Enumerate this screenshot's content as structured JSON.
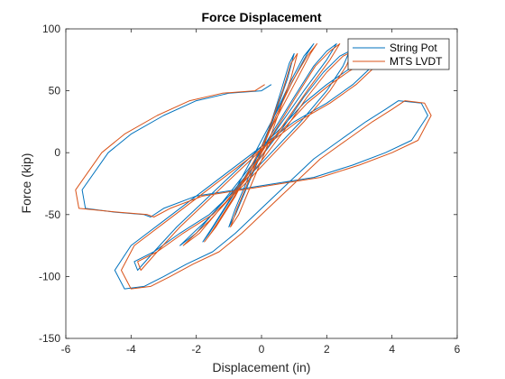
{
  "chart_data": {
    "type": "line",
    "title": "Force Displacement",
    "xlabel": "Displacement (in)",
    "ylabel": "Force (kip)",
    "xlim": [
      -6,
      6
    ],
    "ylim": [
      -150,
      100
    ],
    "xticks": [
      -6,
      -4,
      -2,
      0,
      2,
      4,
      6
    ],
    "yticks": [
      -150,
      -100,
      -50,
      0,
      50,
      100
    ],
    "grid": false,
    "legend_position": "top-right",
    "series": [
      {
        "name": "String Pot",
        "color": "#0072BD",
        "x": [
          0,
          0.3,
          0.6,
          0.85,
          1.0,
          0.8,
          0.4,
          0,
          -0.4,
          -0.8,
          -1.0,
          -0.8,
          -0.4,
          0,
          0.4,
          0.9,
          1.3,
          1.6,
          1.4,
          0.9,
          0.3,
          -0.3,
          -0.9,
          -1.5,
          -1.8,
          -1.6,
          -1.0,
          -0.4,
          0.3,
          1.0,
          1.6,
          2.0,
          2.3,
          2.0,
          1.3,
          0.5,
          -0.3,
          -1.2,
          -2.0,
          -2.5,
          -2.3,
          -1.7,
          -1.0,
          -0.2,
          0.6,
          1.3,
          1.9,
          2.4,
          2.7,
          2.5,
          2.0,
          1.2,
          0.3,
          -0.6,
          -1.6,
          -2.5,
          -3.3,
          -3.9,
          -3.8,
          -3.3,
          -2.6,
          -1.8,
          -1.0,
          -0.2,
          0.6,
          1.3,
          2.0,
          2.6,
          3.2,
          3.6,
          3.4,
          2.8,
          2.0,
          1.0,
          0,
          -1.0,
          -2.0,
          -3.0,
          -4.0,
          -4.5,
          -4.2,
          -3.6,
          -3.0,
          -2.3,
          -1.5,
          -0.8,
          0,
          0.8,
          1.6,
          2.4,
          3.2,
          3.8,
          4.2,
          4.9,
          5.1,
          4.6,
          3.8,
          2.8,
          1.6,
          0.4,
          -0.8,
          -2.0,
          -3.0,
          -3.4,
          -3.6,
          -4.5,
          -5.4,
          -5.5,
          -4.7,
          -4.0,
          -3.0,
          -2.0,
          -1.0,
          0,
          0.3
        ],
        "y": [
          0,
          25,
          50,
          72,
          80,
          60,
          30,
          0,
          -25,
          -50,
          -60,
          -45,
          -20,
          5,
          30,
          58,
          78,
          88,
          80,
          55,
          25,
          -5,
          -35,
          -60,
          -72,
          -65,
          -40,
          -15,
          15,
          45,
          70,
          82,
          88,
          75,
          50,
          20,
          -10,
          -40,
          -65,
          -75,
          -70,
          -55,
          -35,
          -10,
          18,
          45,
          65,
          78,
          82,
          70,
          50,
          25,
          0,
          -25,
          -50,
          -65,
          -80,
          -88,
          -95,
          -80,
          -60,
          -40,
          -20,
          0,
          20,
          40,
          55,
          66,
          75,
          80,
          70,
          55,
          40,
          25,
          5,
          -15,
          -35,
          -55,
          -75,
          -95,
          -110,
          -108,
          -100,
          -90,
          -80,
          -65,
          -45,
          -25,
          -5,
          10,
          25,
          35,
          42,
          40,
          30,
          10,
          0,
          -10,
          -20,
          -25,
          -30,
          -35,
          -45,
          -52,
          -50,
          -48,
          -45,
          -30,
          0,
          15,
          30,
          42,
          48,
          50,
          55
        ]
      },
      {
        "name": "MTS LVDT",
        "color": "#D95319",
        "x": [
          0,
          0.3,
          0.65,
          0.9,
          1.1,
          0.9,
          0.5,
          0.1,
          -0.3,
          -0.7,
          -0.95,
          -0.75,
          -0.35,
          0.05,
          0.45,
          0.95,
          1.4,
          1.7,
          1.5,
          1.0,
          0.4,
          -0.2,
          -0.8,
          -1.4,
          -1.75,
          -1.55,
          -0.95,
          -0.35,
          0.35,
          1.05,
          1.65,
          2.1,
          2.4,
          2.1,
          1.4,
          0.6,
          -0.2,
          -1.1,
          -1.9,
          -2.4,
          -2.2,
          -1.6,
          -0.9,
          -0.1,
          0.7,
          1.4,
          2.0,
          2.5,
          2.8,
          2.6,
          2.1,
          1.3,
          0.4,
          -0.5,
          -1.5,
          -2.4,
          -3.2,
          -3.8,
          -3.7,
          -3.2,
          -2.5,
          -1.7,
          -0.9,
          -0.1,
          0.7,
          1.4,
          2.1,
          2.7,
          3.3,
          3.7,
          3.5,
          2.9,
          2.1,
          1.1,
          0.1,
          -0.9,
          -1.9,
          -2.9,
          -3.9,
          -4.3,
          -4.0,
          -3.4,
          -2.8,
          -2.1,
          -1.3,
          -0.6,
          0.2,
          1.0,
          1.8,
          2.6,
          3.4,
          4.0,
          4.4,
          5.0,
          5.2,
          4.8,
          4.0,
          3.0,
          1.8,
          0.6,
          -0.6,
          -1.8,
          -2.8,
          -3.3,
          -3.5,
          -4.4,
          -5.6,
          -5.7,
          -4.9,
          -4.2,
          -3.2,
          -2.2,
          -1.2,
          -0.2,
          0.1
        ],
        "y": [
          0,
          25,
          50,
          72,
          80,
          60,
          30,
          0,
          -25,
          -50,
          -60,
          -45,
          -20,
          5,
          30,
          58,
          78,
          88,
          80,
          55,
          25,
          -5,
          -35,
          -60,
          -72,
          -65,
          -40,
          -15,
          15,
          45,
          70,
          82,
          88,
          75,
          50,
          20,
          -10,
          -40,
          -65,
          -75,
          -70,
          -55,
          -35,
          -10,
          18,
          45,
          65,
          78,
          82,
          70,
          50,
          25,
          0,
          -25,
          -50,
          -65,
          -80,
          -88,
          -95,
          -80,
          -60,
          -40,
          -20,
          0,
          20,
          40,
          55,
          66,
          75,
          80,
          70,
          55,
          40,
          25,
          5,
          -15,
          -35,
          -55,
          -75,
          -95,
          -110,
          -108,
          -100,
          -90,
          -80,
          -65,
          -45,
          -25,
          -5,
          10,
          25,
          35,
          42,
          40,
          30,
          10,
          0,
          -10,
          -20,
          -25,
          -30,
          -35,
          -45,
          -52,
          -50,
          -48,
          -45,
          -30,
          0,
          15,
          30,
          42,
          48,
          50,
          55
        ]
      }
    ]
  }
}
